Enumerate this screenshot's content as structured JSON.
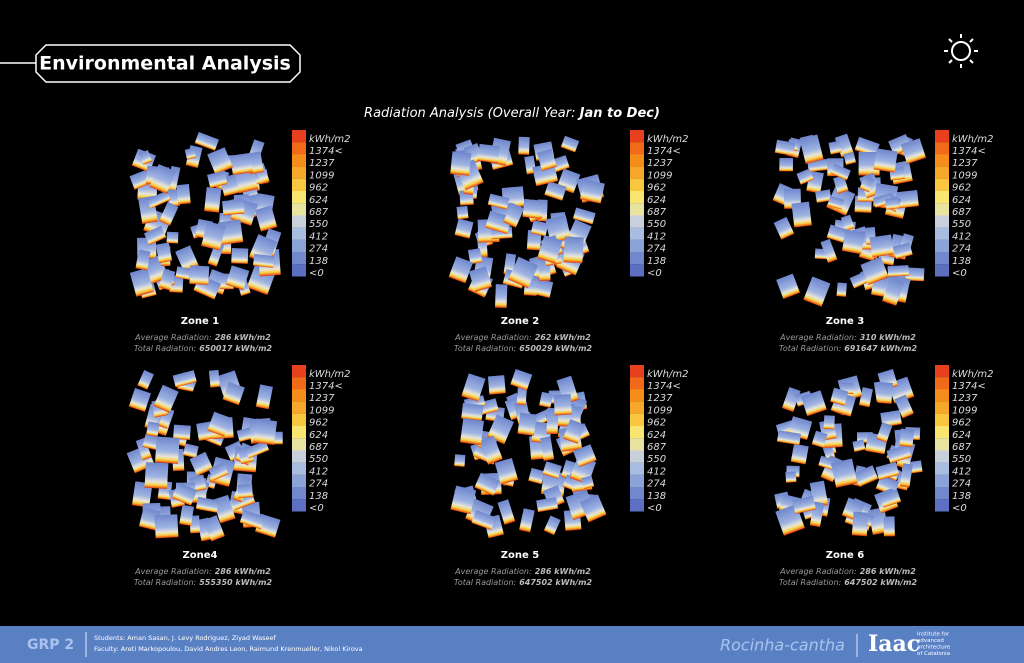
{
  "header": {
    "title": "Environmental Analysis"
  },
  "subtitle": {
    "text": "Radiation Analysis (Overall Year: ",
    "emphasis": "Jan to Dec)"
  },
  "legend": {
    "unit": "kWh/m2",
    "labels": [
      "1374<",
      "1237",
      "1099",
      "962",
      "624",
      "687",
      "550",
      "412",
      "274",
      "138",
      "<0"
    ]
  },
  "zones": [
    {
      "name": "Zone 1",
      "average_label": "Average Radiation:",
      "average": "286 kWh/m2",
      "total_label": "Total Radiation:",
      "total": "650017 kWh/m2"
    },
    {
      "name": "Zone 2",
      "average_label": "Average Radiation:",
      "average": "262 kWh/m2",
      "total_label": "Total Radiation:",
      "total": "650029 kWh/m2"
    },
    {
      "name": "Zone 3",
      "average_label": "Average Radiation:",
      "average": "310 kWh/m2",
      "total_label": "Total Radiation:",
      "total": "691647 kWh/m2"
    },
    {
      "name": "Zone4",
      "average_label": "Average Radiation:",
      "average": "286 kWh/m2",
      "total_label": "Total Radiation:",
      "total": "555350 kWh/m2"
    },
    {
      "name": "Zone 5",
      "average_label": "Average Radiation:",
      "average": "286 kWh/m2",
      "total_label": "Total Radiation:",
      "total": "647502 kWh/m2"
    },
    {
      "name": "Zone 6",
      "average_label": "Average Radiation:",
      "average": "286 kWh/m2",
      "total_label": "Total Radiation:",
      "total": "647502 kWh/m2"
    }
  ],
  "footer": {
    "group": "GRP 2",
    "students": "Students: Aman Sasan, J. Levy Rodriguez, Ziyad Waseef",
    "faculty": "Faculty: Areti Markopoulou, David Andres Leon, Raimund Krenmueller, Nikol Kirova",
    "project": "Rocinha-cantha",
    "logo": "Iaac",
    "institute": [
      "Institute for",
      "advanced",
      "architecture",
      "of Catalonia"
    ]
  }
}
